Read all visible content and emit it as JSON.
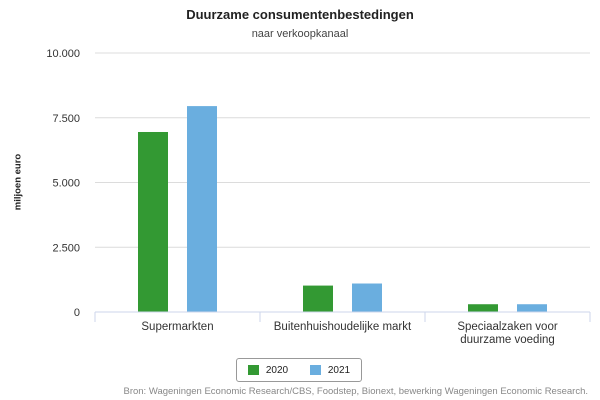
{
  "chart_data": {
    "type": "bar",
    "title": "Duurzame consumentenbestedingen",
    "subtitle": "naar verkoopkanaal",
    "ylabel": "miljoen euro",
    "xlabel": "",
    "ylim": [
      0,
      10000
    ],
    "yticks": [
      "0",
      "2.500",
      "5.000",
      "7.500",
      "10.000"
    ],
    "ytick_values": [
      0,
      2500,
      5000,
      7500,
      10000
    ],
    "categories": [
      [
        "Supermarkten"
      ],
      [
        "Buitenhuishoudelijke markt"
      ],
      [
        "Speciaalzaken voor",
        "duurzame voeding"
      ]
    ],
    "series": [
      {
        "name": "2020",
        "color": "#339933",
        "values": [
          6950,
          1020,
          300
        ]
      },
      {
        "name": "2021",
        "color": "#6aaedf",
        "values": [
          7950,
          1100,
          300
        ]
      }
    ],
    "grid": true,
    "legend": "bottom-center",
    "source": "Bron: Wageningen Economic Research/CBS, Foodstep, Bionext, bewerking Wageningen Economic Research."
  }
}
